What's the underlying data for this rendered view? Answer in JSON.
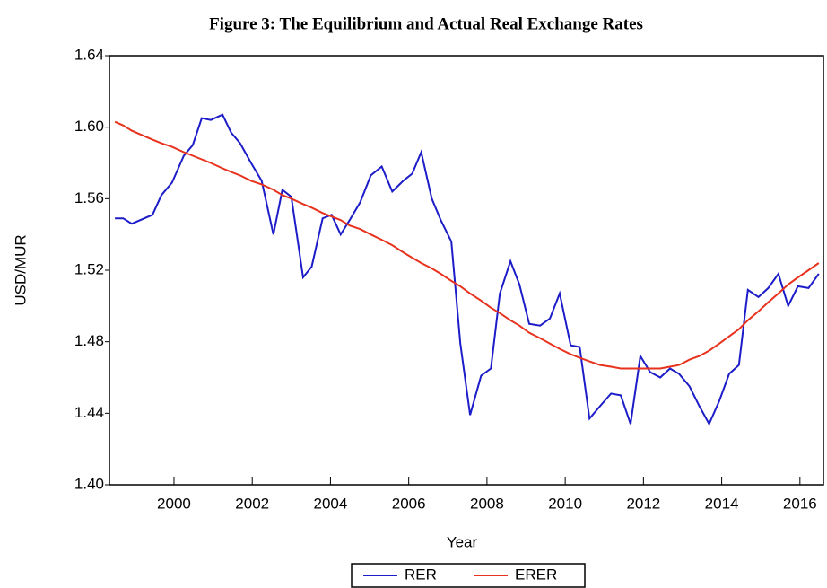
{
  "chart_data": {
    "type": "line",
    "title": "Figure 3: The Equilibrium and Actual Real Exchange Rates",
    "xlabel": "Year",
    "ylabel": "USD/MUR",
    "x": [
      1998.49,
      1998.7,
      1998.92,
      1999.45,
      1999.68,
      1999.95,
      2000.25,
      2000.48,
      2000.71,
      2000.94,
      2001.24,
      2001.46,
      2001.69,
      2001.97,
      2002.24,
      2002.54,
      2002.77,
      2003.0,
      2003.3,
      2003.52,
      2003.8,
      2004.03,
      2004.26,
      2004.49,
      2004.76,
      2005.03,
      2005.31,
      2005.58,
      2005.86,
      2006.09,
      2006.32,
      2006.59,
      2006.82,
      2007.09,
      2007.32,
      2007.57,
      2007.85,
      2008.1,
      2008.33,
      2008.6,
      2008.83,
      2009.08,
      2009.36,
      2009.61,
      2009.86,
      2010.14,
      2010.37,
      2010.62,
      2010.89,
      2011.17,
      2011.42,
      2011.67,
      2011.92,
      2012.17,
      2012.43,
      2012.68,
      2012.91,
      2013.18,
      2013.43,
      2013.68,
      2013.94,
      2014.19,
      2014.44,
      2014.67,
      2014.94,
      2015.19,
      2015.45,
      2015.7,
      2015.95,
      2016.22,
      2016.48
    ],
    "series": [
      {
        "name": "RER",
        "color": "#1c1cc8",
        "values": [
          1.549,
          1.549,
          1.546,
          1.551,
          1.562,
          1.569,
          1.584,
          1.59,
          1.605,
          1.604,
          1.607,
          1.597,
          1.591,
          1.58,
          1.57,
          1.54,
          1.565,
          1.561,
          1.516,
          1.522,
          1.549,
          1.551,
          1.54,
          1.548,
          1.558,
          1.573,
          1.578,
          1.564,
          1.57,
          1.574,
          1.586,
          1.56,
          1.548,
          1.536,
          1.479,
          1.439,
          1.461,
          1.465,
          1.507,
          1.525,
          1.512,
          1.49,
          1.489,
          1.493,
          1.507,
          1.478,
          1.477,
          1.437,
          1.444,
          1.451,
          1.45,
          1.434,
          1.472,
          1.463,
          1.46,
          1.465,
          1.462,
          1.455,
          1.444,
          1.434,
          1.447,
          1.462,
          1.467,
          1.509,
          1.505,
          1.51,
          1.518,
          1.5,
          1.511,
          1.51,
          1.518
        ]
      },
      {
        "name": "ERER",
        "color": "#e8321e",
        "values": [
          1.603,
          1.601,
          1.598,
          1.593,
          1.591,
          1.589,
          1.586,
          1.584,
          1.582,
          1.58,
          1.577,
          1.575,
          1.573,
          1.57,
          1.568,
          1.565,
          1.562,
          1.56,
          1.557,
          1.555,
          1.552,
          1.55,
          1.548,
          1.545,
          1.543,
          1.54,
          1.537,
          1.534,
          1.53,
          1.527,
          1.524,
          1.521,
          1.518,
          1.514,
          1.511,
          1.507,
          1.503,
          1.499,
          1.496,
          1.492,
          1.489,
          1.485,
          1.482,
          1.479,
          1.476,
          1.473,
          1.471,
          1.469,
          1.467,
          1.466,
          1.465,
          1.465,
          1.465,
          1.465,
          1.465,
          1.466,
          1.467,
          1.47,
          1.472,
          1.475,
          1.479,
          1.483,
          1.487,
          1.492,
          1.497,
          1.502,
          1.507,
          1.512,
          1.516,
          1.52,
          1.524
        ]
      }
    ],
    "xlim": [
      1998.35,
      2016.6
    ],
    "xticks": [
      2000,
      2002,
      2004,
      2006,
      2008,
      2010,
      2012,
      2014,
      2016
    ],
    "ylim": [
      1.4,
      1.64
    ],
    "yticks": [
      {
        "value": 1.4,
        "label": "1.40"
      },
      1.44,
      1.48,
      1.52,
      1.56,
      {
        "value": 1.6,
        "label": "1.60"
      },
      1.64
    ],
    "legend": "bottom"
  }
}
